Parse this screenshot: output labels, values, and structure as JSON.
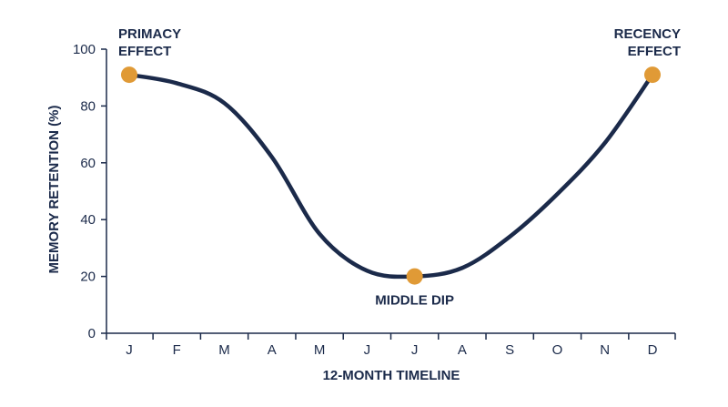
{
  "colors": {
    "line": "#1b2a4a",
    "marker": "#e09a36",
    "axis": "#1b2a4a",
    "text": "#1b2a4a"
  },
  "chart_data": {
    "type": "line",
    "title": "",
    "xlabel": "12-MONTH TIMELINE",
    "ylabel": "MEMORY RETENTION (%)",
    "categories": [
      "J",
      "F",
      "M",
      "A",
      "M",
      "J",
      "J",
      "A",
      "S",
      "O",
      "N",
      "D"
    ],
    "yticks": [
      "0",
      "20",
      "40",
      "60",
      "80",
      "100"
    ],
    "ylim": [
      0,
      100
    ],
    "grid": false,
    "series": [
      {
        "values": [
          91,
          88,
          81,
          62,
          35,
          22,
          20,
          23,
          34,
          49,
          67,
          91
        ]
      }
    ],
    "highlighted_points": [
      {
        "category_index": 0,
        "value": 91,
        "label": [
          "PRIMACY",
          "EFFECT"
        ]
      },
      {
        "category_index": 6,
        "value": 20,
        "label": [
          "MIDDLE DIP"
        ]
      },
      {
        "category_index": 11,
        "value": 91,
        "label": [
          "RECENCY",
          "EFFECT"
        ]
      }
    ]
  }
}
